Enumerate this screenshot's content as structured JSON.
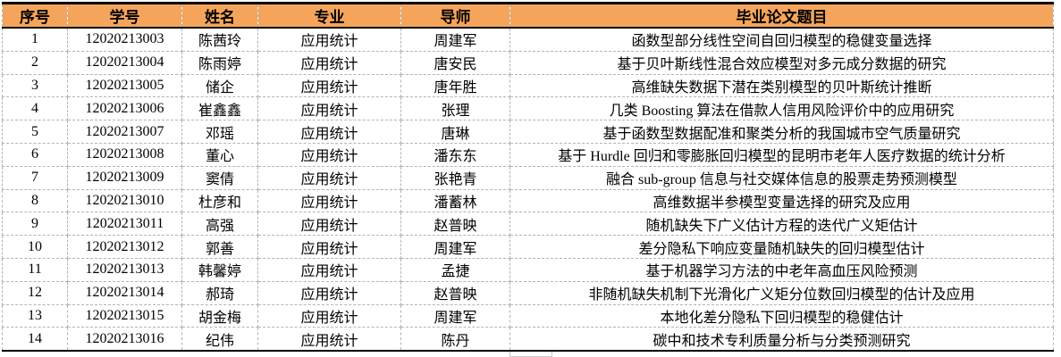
{
  "colors": {
    "header_bg": "#f5a55b",
    "table_border": "#000000",
    "gridline": "#b3b3b3",
    "text": "#000000"
  },
  "table": {
    "columns": [
      {
        "key": "index",
        "label": "序号"
      },
      {
        "key": "student-id",
        "label": "学号"
      },
      {
        "key": "name",
        "label": "姓名"
      },
      {
        "key": "major",
        "label": "专业"
      },
      {
        "key": "advisor",
        "label": "导师"
      },
      {
        "key": "thesis-title",
        "label": "毕业论文题目"
      }
    ],
    "rows": [
      [
        "1",
        "12020213003",
        "陈茜玲",
        "应用统计",
        "周建军",
        "函数型部分线性空间自回归模型的稳健变量选择"
      ],
      [
        "2",
        "12020213004",
        "陈雨婷",
        "应用统计",
        "唐安民",
        "基于贝叶斯线性混合效应模型对多元成分数据的研究"
      ],
      [
        "3",
        "12020213005",
        "储企",
        "应用统计",
        "唐年胜",
        "高维缺失数据下潜在类别模型的贝叶斯统计推断"
      ],
      [
        "4",
        "12020213006",
        "崔鑫鑫",
        "应用统计",
        "张理",
        "几类 Boosting 算法在借款人信用风险评价中的应用研究"
      ],
      [
        "5",
        "12020213007",
        "邓瑶",
        "应用统计",
        "唐琳",
        "基于函数型数据配准和聚类分析的我国城市空气质量研究"
      ],
      [
        "6",
        "12020213008",
        "董心",
        "应用统计",
        "潘东东",
        "基于 Hurdle 回归和零膨胀回归模型的昆明市老年人医疗数据的统计分析"
      ],
      [
        "7",
        "12020213009",
        "窦倩",
        "应用统计",
        "张艳青",
        "融合 sub-group 信息与社交媒体信息的股票走势预测模型"
      ],
      [
        "8",
        "12020213010",
        "杜彦和",
        "应用统计",
        "潘蓄林",
        "高维数据半参模型变量选择的研究及应用"
      ],
      [
        "9",
        "12020213011",
        "高强",
        "应用统计",
        "赵普映",
        "随机缺失下广义估计方程的迭代广义矩估计"
      ],
      [
        "10",
        "12020213012",
        "郭善",
        "应用统计",
        "周建军",
        "差分隐私下响应变量随机缺失的回归模型估计"
      ],
      [
        "11",
        "12020213013",
        "韩馨婷",
        "应用统计",
        "孟捷",
        "基于机器学习方法的中老年高血压风险预测"
      ],
      [
        "12",
        "12020213014",
        "郝琦",
        "应用统计",
        "赵普映",
        "非随机缺失机制下光滑化广义矩分位数回归模型的估计及应用"
      ],
      [
        "13",
        "12020213015",
        "胡金梅",
        "应用统计",
        "周建军",
        "本地化差分隐私下回归模型的稳健估计"
      ],
      [
        "14",
        "12020213016",
        "纪伟",
        "应用统计",
        "陈丹",
        "碳中和技术专利质量分析与分类预测研究"
      ]
    ]
  }
}
